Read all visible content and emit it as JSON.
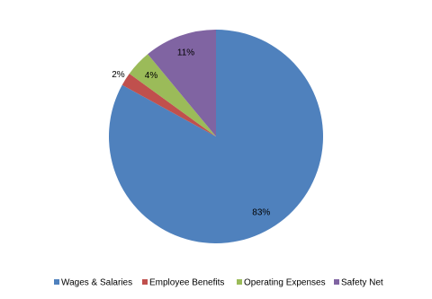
{
  "chart_data": {
    "type": "pie",
    "categories": [
      "Wages & Salaries",
      "Employee Benefits",
      "Operating Expenses",
      "Safety Net"
    ],
    "values": [
      83,
      2,
      4,
      11
    ],
    "value_labels": [
      "83%",
      "2%",
      "4%",
      "11%"
    ],
    "colors": [
      "#4f81bd",
      "#c0504d",
      "#9bbb59",
      "#8064a2"
    ],
    "legend": "bottom"
  }
}
